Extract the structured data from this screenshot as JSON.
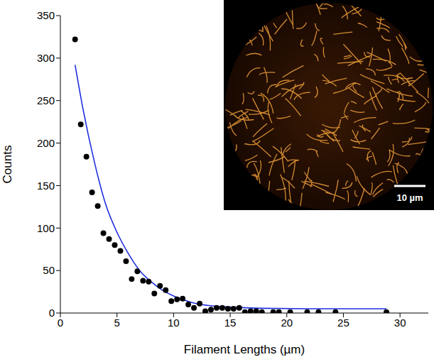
{
  "chart_data": {
    "type": "scatter",
    "x_label": "Filament Lengths (µm)",
    "y_label": "Counts",
    "x": [
      1.3,
      1.8,
      2.3,
      2.8,
      3.3,
      3.8,
      4.3,
      4.8,
      5.3,
      5.8,
      6.3,
      6.8,
      7.3,
      7.8,
      8.3,
      8.8,
      9.3,
      9.8,
      10.3,
      10.8,
      11.3,
      11.8,
      12.3,
      12.8,
      13.3,
      13.8,
      14.3,
      14.8,
      15.3,
      15.8,
      16.3,
      16.8,
      17.3,
      17.8,
      18.8,
      19.3,
      20.3,
      21.8,
      22.8,
      24.3,
      28.8
    ],
    "values": [
      322,
      222,
      184,
      142,
      126,
      94,
      87,
      80,
      73,
      61,
      40,
      49,
      38,
      37,
      23,
      32,
      27,
      14,
      16,
      17,
      10,
      6,
      11,
      2,
      4,
      6,
      6,
      5,
      5,
      6,
      1,
      2,
      2,
      1,
      1,
      1,
      1,
      1,
      1,
      1,
      1
    ],
    "color": "#000000",
    "marker": "circle",
    "fit": {
      "type": "line",
      "x": [
        1.3,
        2,
        3,
        4,
        5,
        6,
        7,
        8,
        9,
        10,
        11,
        12,
        13,
        15,
        18,
        22,
        28.8
      ],
      "values": [
        292,
        240,
        178,
        128,
        95,
        70,
        50,
        37,
        27,
        20,
        15,
        11,
        9,
        7,
        5.5,
        5,
        5
      ],
      "color": "#1f2fe0"
    },
    "xlim": [
      0,
      32.5
    ],
    "xticks": [
      0,
      5,
      10,
      15,
      20,
      25,
      30
    ],
    "ylim": [
      0,
      350
    ],
    "yticks": [
      0,
      50,
      100,
      150,
      200,
      250,
      300,
      350
    ],
    "grid": false
  },
  "inset": {
    "scale_bar": "10 µm"
  }
}
